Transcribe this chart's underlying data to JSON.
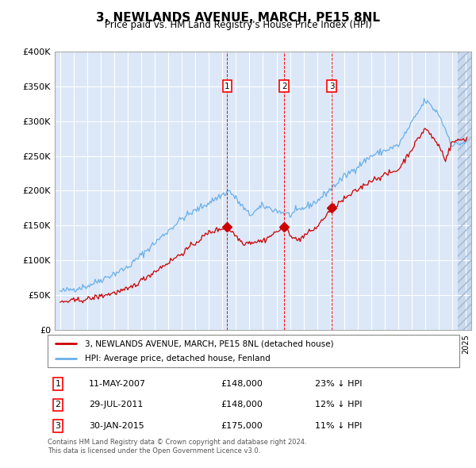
{
  "title": "3, NEWLANDS AVENUE, MARCH, PE15 8NL",
  "subtitle": "Price paid vs. HM Land Registry's House Price Index (HPI)",
  "ylabel_ticks": [
    "£0",
    "£50K",
    "£100K",
    "£150K",
    "£200K",
    "£250K",
    "£300K",
    "£350K",
    "£400K"
  ],
  "ylim": [
    0,
    400000
  ],
  "xlim_start": 1994.6,
  "xlim_end": 2025.4,
  "sales": [
    {
      "num": 1,
      "date": "11-MAY-2007",
      "price": 148000,
      "year": 2007.36,
      "label": "£148,000",
      "pct": "23% ↓ HPI"
    },
    {
      "num": 2,
      "date": "29-JUL-2011",
      "price": 148000,
      "year": 2011.57,
      "label": "£148,000",
      "pct": "12% ↓ HPI"
    },
    {
      "num": 3,
      "date": "30-JAN-2015",
      "price": 175000,
      "year": 2015.08,
      "label": "£175,000",
      "pct": "11% ↓ HPI"
    }
  ],
  "legend_property": "3, NEWLANDS AVENUE, MARCH, PE15 8NL (detached house)",
  "legend_hpi": "HPI: Average price, detached house, Fenland",
  "footnote1": "Contains HM Land Registry data © Crown copyright and database right 2024.",
  "footnote2": "This data is licensed under the Open Government Licence v3.0.",
  "line_color_red": "#cc0000",
  "line_color_blue": "#6ab0e8",
  "bg_color": "#dce8f8",
  "sale_marker_color": "#cc0000",
  "hatch_bg_color": "#c8d8ee",
  "grid_color": "#ffffff",
  "spine_color": "#aaaaaa"
}
